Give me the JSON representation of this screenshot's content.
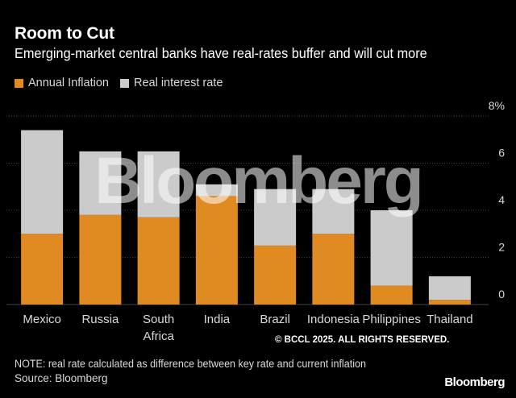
{
  "header": {
    "title": "Room to Cut",
    "subtitle": "Emerging-market central banks have real-rates buffer and will cut more"
  },
  "legend": {
    "inflation_label": "Annual Inflation",
    "real_rate_label": "Real interest rate"
  },
  "colors": {
    "inflation": "#e08a22",
    "real_rate": "#cbcbcb",
    "background": "#000000"
  },
  "chart_data": {
    "type": "bar",
    "stacked": true,
    "categories": [
      "Mexico",
      "Russia",
      "South Africa",
      "India",
      "Brazil",
      "Indonesia",
      "Philippines",
      "Thailand"
    ],
    "series": [
      {
        "name": "Annual Inflation",
        "values": [
          3.0,
          3.8,
          3.7,
          4.6,
          2.5,
          3.0,
          0.8,
          0.2
        ]
      },
      {
        "name": "Real interest rate",
        "values": [
          4.4,
          2.7,
          2.8,
          0.5,
          2.4,
          1.9,
          3.2,
          1.0
        ]
      }
    ],
    "y_ticks": [
      "0",
      "2",
      "4",
      "6",
      "8%"
    ],
    "ylim": [
      0,
      8
    ],
    "grid": true,
    "legend_position": "top-left"
  },
  "watermark": "Bloomberg",
  "copyright": "© BCCL 2025. ALL RIGHTS RESERVED.",
  "footer": {
    "note": "NOTE: real rate calculated as difference between key rate and current inflation",
    "source": "Source: Bloomberg",
    "logo": "Bloomberg"
  }
}
